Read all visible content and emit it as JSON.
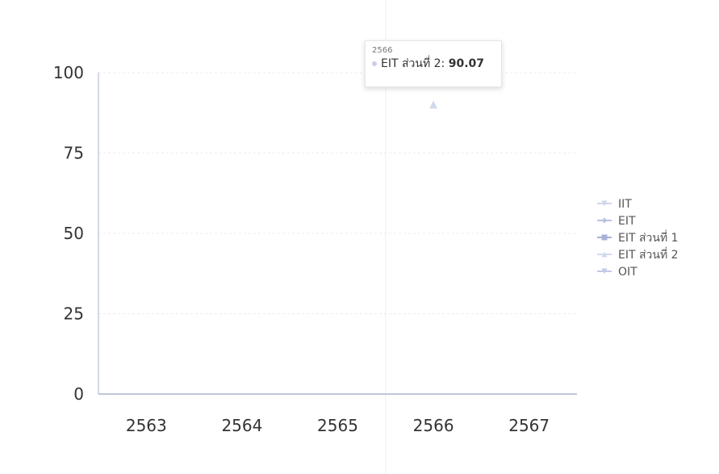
{
  "chart_data": {
    "type": "line",
    "title": "",
    "xlabel": "",
    "ylabel": "",
    "categories": [
      "2563",
      "2564",
      "2565",
      "2566",
      "2567"
    ],
    "yticks": [
      "0",
      "25",
      "50",
      "75",
      "100"
    ],
    "ylim": [
      0,
      100
    ],
    "grid": true,
    "legend_position": "right",
    "series": [
      {
        "name": "IIT",
        "marker": "triangle-down",
        "color": "#cfd6ea",
        "values": [
          null,
          null,
          null,
          null,
          null
        ]
      },
      {
        "name": "EIT",
        "marker": "diamond",
        "color": "#b9c3e2",
        "values": [
          null,
          null,
          null,
          null,
          null
        ]
      },
      {
        "name": "EIT ส่วนที่ 1",
        "marker": "square",
        "color": "#a6b2d8",
        "values": [
          null,
          null,
          null,
          null,
          null
        ]
      },
      {
        "name": "EIT ส่วนที่ 2",
        "marker": "triangle",
        "color": "#d3d9ec",
        "values": [
          null,
          null,
          null,
          90.07,
          null
        ]
      },
      {
        "name": "OIT",
        "marker": "triangle-down",
        "color": "#c2cae4",
        "values": [
          null,
          null,
          null,
          null,
          null
        ]
      }
    ],
    "tooltip": {
      "category": "2566",
      "series": "EIT ส่วนที่ 2",
      "value": "90.07"
    }
  }
}
